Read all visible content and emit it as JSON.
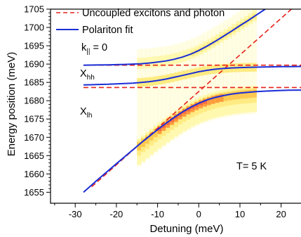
{
  "chart_data": {
    "type": "line",
    "xlabel": "Detuning (meV)",
    "ylabel": "Energy position (meV)",
    "xlim": [
      -36,
      25
    ],
    "ylim": [
      1652,
      1705
    ],
    "xticks": [
      -30,
      -20,
      -10,
      0,
      10,
      20
    ],
    "yticks": [
      1655,
      1660,
      1665,
      1670,
      1675,
      1680,
      1685,
      1690,
      1695,
      1700,
      1705
    ],
    "grid": false,
    "legend_position": "top-left",
    "legend": [
      {
        "label": "Uncoupled excitons and photon",
        "style": "dashed",
        "color": "#e8221c"
      },
      {
        "label": "Polariton fit",
        "style": "solid",
        "color": "#1a2ed6"
      }
    ],
    "annotations": {
      "k": {
        "base": "k",
        "sub": "||",
        "rest": " = 0"
      },
      "xhh": {
        "base": "X",
        "sub": "hh"
      },
      "xlh": {
        "base": "X",
        "sub": "lh"
      },
      "temperature": "T= 5 K"
    },
    "uncoupled": [
      {
        "name": "photon",
        "x": [
          -26,
          24
        ],
        "y": [
          1656.5,
          1706.5
        ]
      },
      {
        "name": "heavy-hole exciton",
        "x": [
          -28,
          25
        ],
        "y": [
          1689.7,
          1689.7
        ]
      },
      {
        "name": "light-hole exciton",
        "x": [
          -28,
          25
        ],
        "y": [
          1683.6,
          1683.6
        ]
      }
    ],
    "polariton_fit": {
      "x": [
        -28,
        -25,
        -22,
        -20,
        -18,
        -16,
        -14,
        -12,
        -10,
        -8,
        -6,
        -4,
        -2,
        0,
        2,
        4,
        6,
        8,
        10,
        12,
        14,
        16,
        18,
        20,
        22,
        25
      ],
      "upper": [
        1689.7,
        1689.75,
        1689.8,
        1689.85,
        1689.9,
        1690.0,
        1690.1,
        1690.3,
        1690.55,
        1690.85,
        1691.3,
        1691.9,
        1692.7,
        1693.7,
        1694.9,
        1696.2,
        1697.6,
        1699.0,
        1700.5,
        1701.9,
        1703.4,
        1704.9,
        1706.4,
        1707.9,
        1709.4,
        1711.4
      ],
      "middle": [
        1684.3,
        1684.4,
        1684.5,
        1684.6,
        1684.7,
        1684.8,
        1685.0,
        1685.2,
        1685.5,
        1685.9,
        1686.4,
        1686.9,
        1687.4,
        1687.9,
        1688.3,
        1688.6,
        1688.8,
        1688.95,
        1689.05,
        1689.1,
        1689.15,
        1689.2,
        1689.25,
        1689.3,
        1689.3,
        1689.35
      ],
      "lower": [
        1655.0,
        1658.0,
        1660.9,
        1662.8,
        1664.7,
        1666.6,
        1668.5,
        1670.3,
        1672.1,
        1673.8,
        1675.4,
        1676.9,
        1678.2,
        1679.3,
        1680.2,
        1680.9,
        1681.4,
        1681.8,
        1682.1,
        1682.3,
        1682.5,
        1682.6,
        1682.7,
        1682.8,
        1682.85,
        1682.9
      ]
    },
    "intensity_map": {
      "x_range": [
        -15,
        14
      ],
      "note_colors": [
        "#fff8b0",
        "#ffe36b",
        "#ffb020",
        "#ff6a00",
        "#e8220c"
      ]
    }
  }
}
